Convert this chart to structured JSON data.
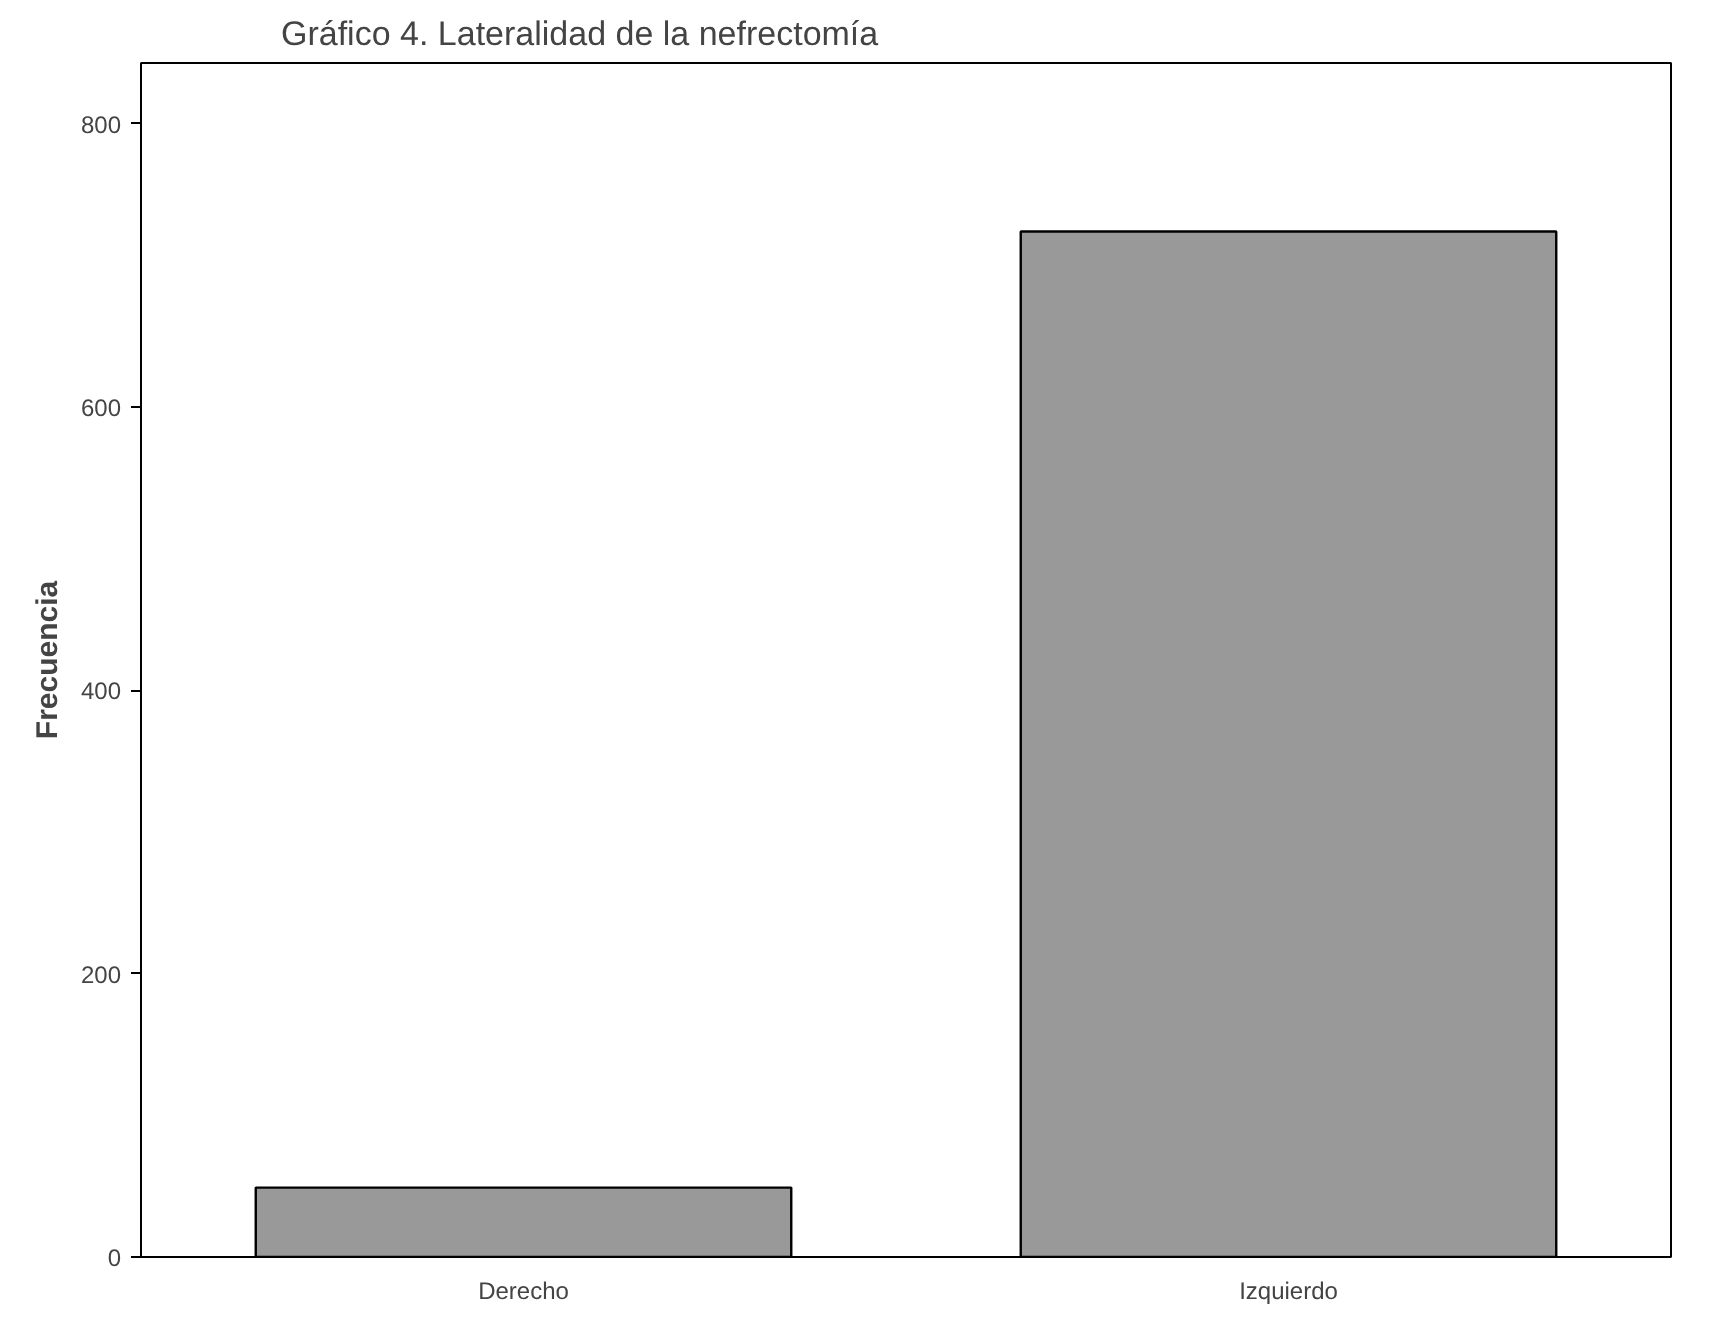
{
  "chart_data": {
    "type": "bar",
    "title": "Gráfico 4. Lateralidad de la nefrectomía",
    "ylabel": "Frecuencia",
    "categories": [
      "Derecho",
      "Izquierdo"
    ],
    "values": [
      49,
      724
    ],
    "color": "#999999",
    "ylim": [
      0,
      843
    ],
    "yticks": [
      0,
      200,
      400,
      600,
      800
    ],
    "grid": false
  }
}
